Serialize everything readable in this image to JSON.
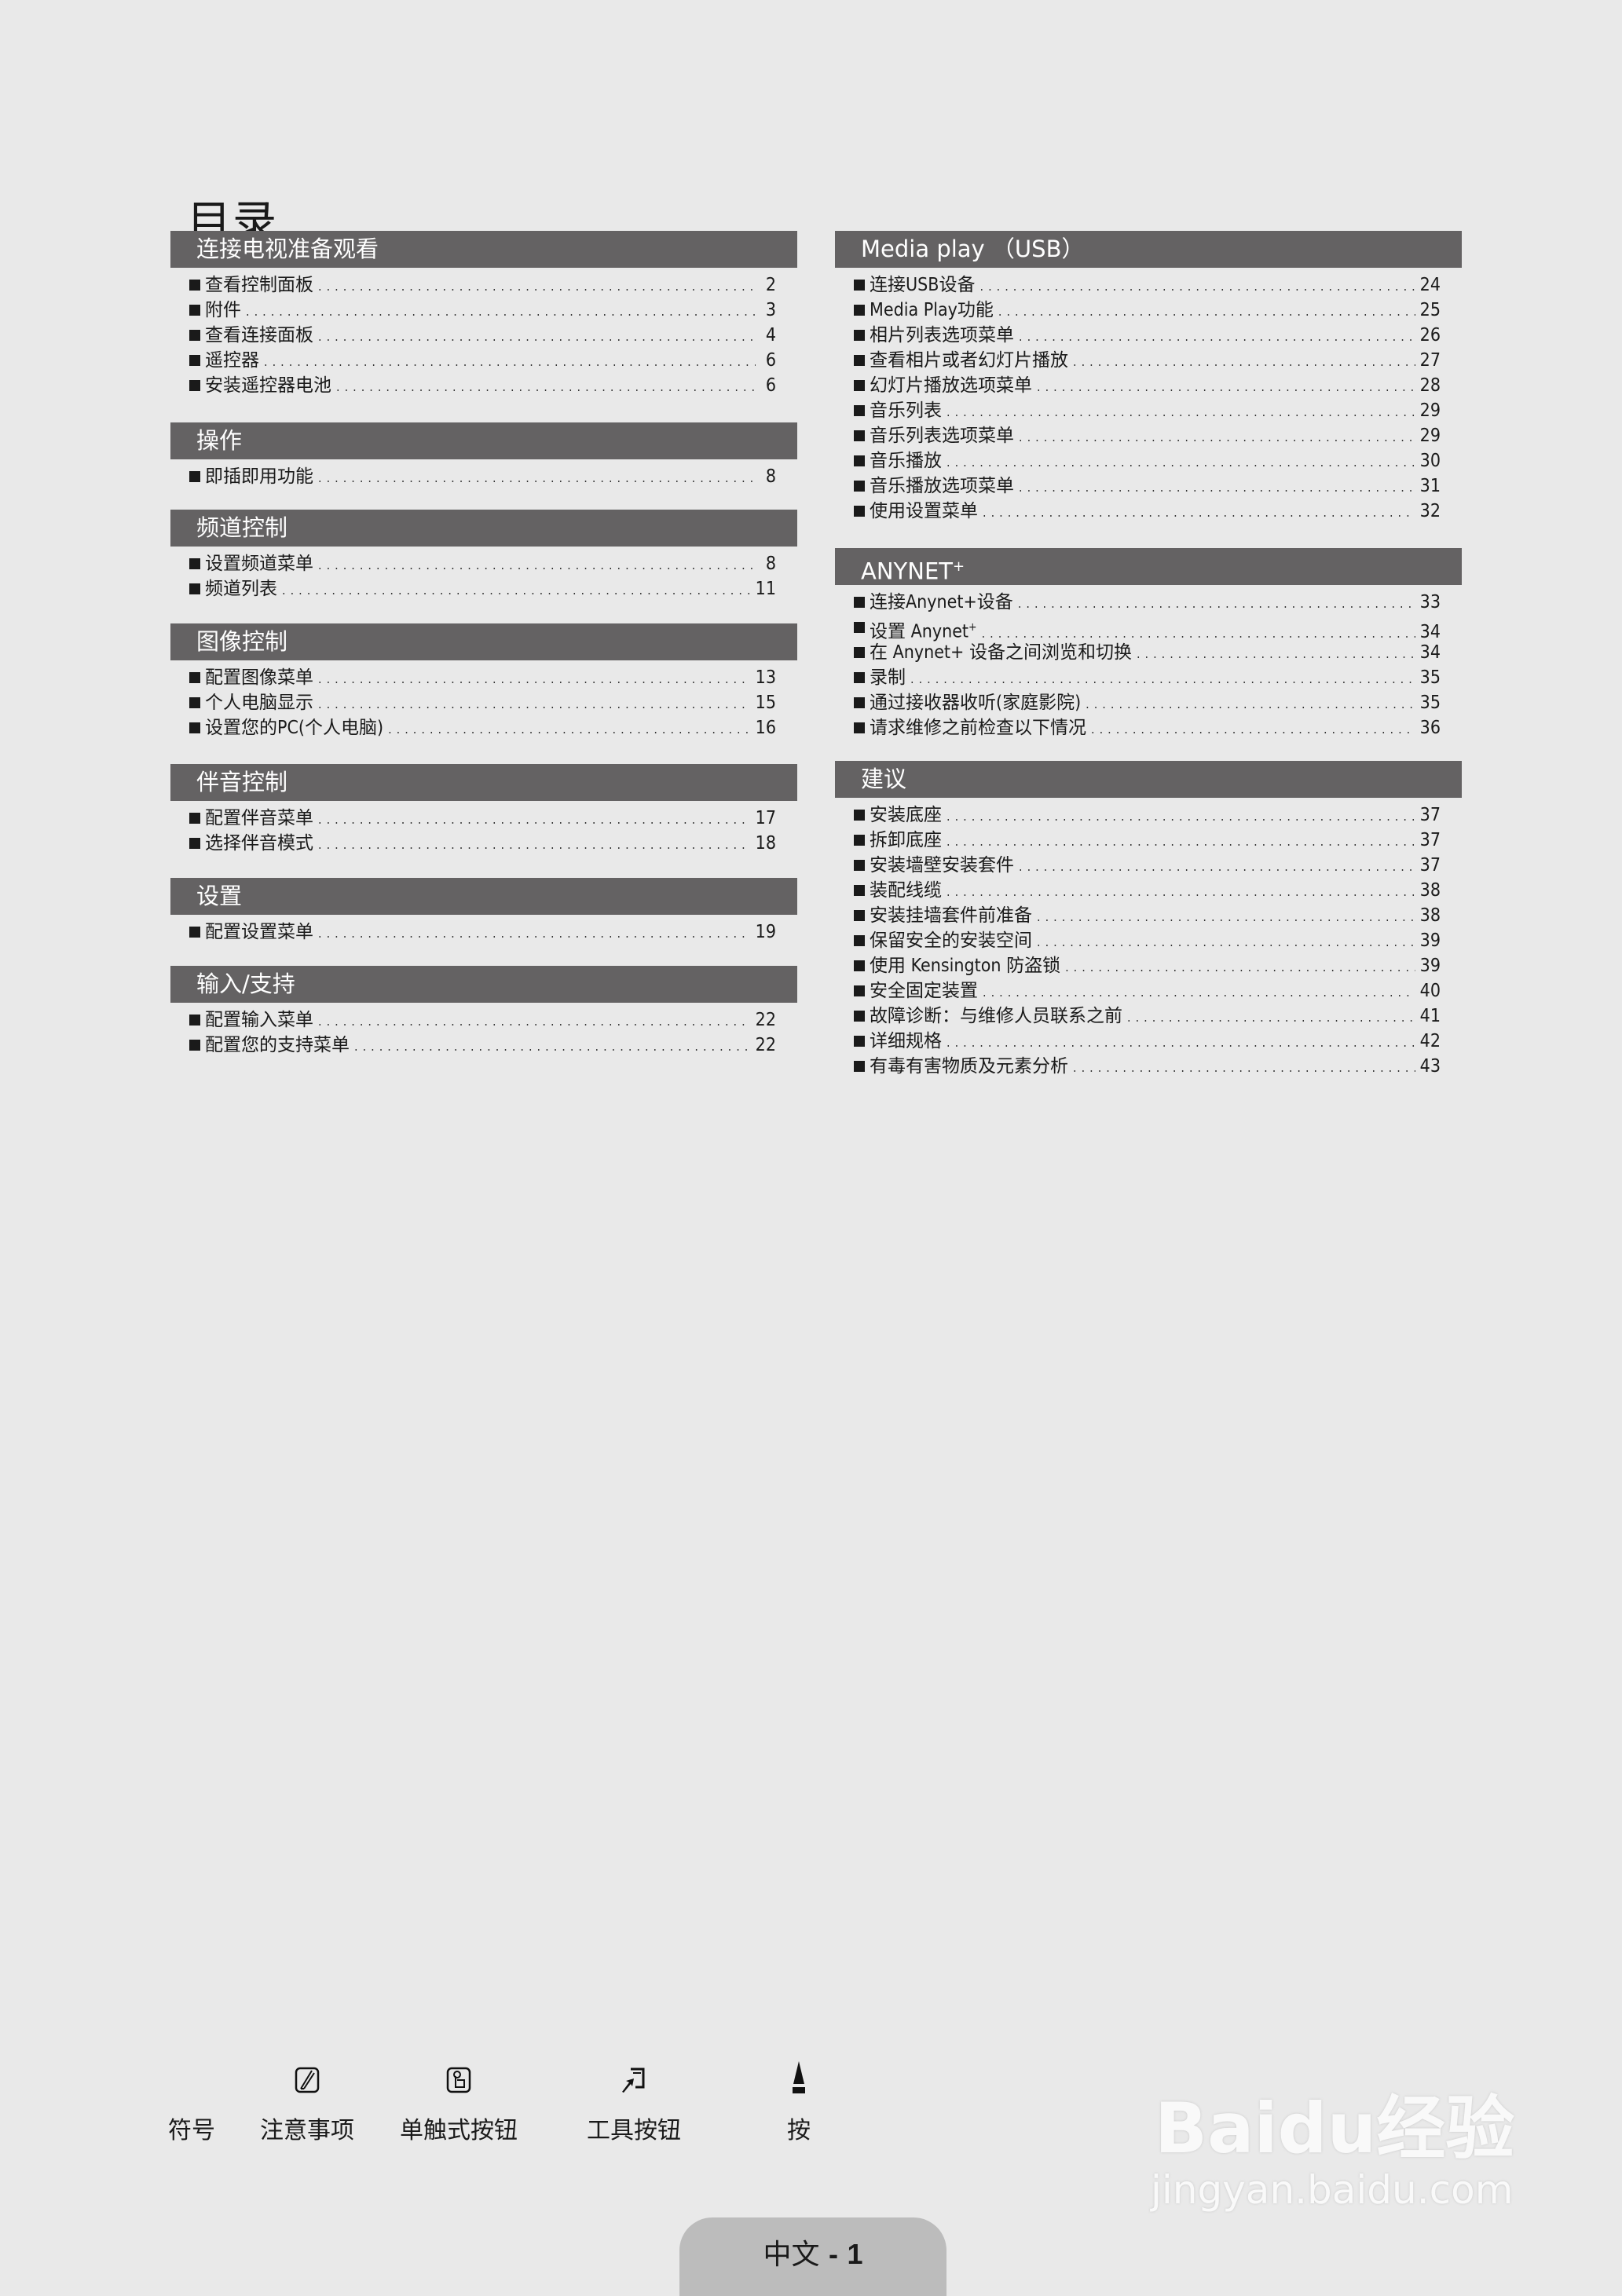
{
  "page_title": "目录",
  "left_sections": [
    {
      "title": "连接电视准备观看",
      "items": [
        {
          "label": "查看控制面板",
          "page": "2"
        },
        {
          "label": "附件",
          "page": "3"
        },
        {
          "label": "查看连接面板",
          "page": "4"
        },
        {
          "label": "遥控器",
          "page": "6"
        },
        {
          "label": "安装遥控器电池",
          "page": "6"
        }
      ]
    },
    {
      "title": "操作",
      "items": [
        {
          "label": "即插即用功能",
          "page": "8"
        }
      ]
    },
    {
      "title": "频道控制",
      "items": [
        {
          "label": "设置频道菜单",
          "page": "8"
        },
        {
          "label": "频道列表",
          "page": "11"
        }
      ]
    },
    {
      "title": "图像控制",
      "items": [
        {
          "label": "配置图像菜单",
          "page": "13"
        },
        {
          "label": "个人电脑显示",
          "page": "15"
        },
        {
          "label": "设置您的PC(个人电脑)",
          "page": "16"
        }
      ]
    },
    {
      "title": "伴音控制",
      "items": [
        {
          "label": "配置伴音菜单",
          "page": "17"
        },
        {
          "label": "选择伴音模式",
          "page": "18"
        }
      ]
    },
    {
      "title": "设置",
      "items": [
        {
          "label": "配置设置菜单",
          "page": "19"
        }
      ]
    },
    {
      "title": "输入/支持",
      "items": [
        {
          "label": "配置输入菜单",
          "page": "22"
        },
        {
          "label": "配置您的支持菜单",
          "page": "22"
        }
      ]
    }
  ],
  "right_sections": [
    {
      "title": "Media play （USB）",
      "items": [
        {
          "label": "连接USB设备",
          "page": "24"
        },
        {
          "label": "Media Play功能",
          "page": "25"
        },
        {
          "label": "相片列表选项菜单",
          "page": "26"
        },
        {
          "label": "查看相片或者幻灯片播放",
          "page": "27"
        },
        {
          "label": "幻灯片播放选项菜单",
          "page": "28"
        },
        {
          "label": "音乐列表",
          "page": "29"
        },
        {
          "label": "音乐列表选项菜单",
          "page": "29"
        },
        {
          "label": "音乐播放",
          "page": "30"
        },
        {
          "label": "音乐播放选项菜单",
          "page": "31"
        },
        {
          "label": "使用设置菜单",
          "page": "32"
        }
      ]
    },
    {
      "title": "ANYNET",
      "title_sup": "+",
      "items": [
        {
          "label": "连接Anynet+设备",
          "page": "33"
        },
        {
          "label": "设置 Anynet",
          "label_sup": "+",
          "page": "34"
        },
        {
          "label": "在 Anynet+ 设备之间浏览和切换",
          "page": "34"
        },
        {
          "label": "录制",
          "page": "35"
        },
        {
          "label": "通过接收器收听(家庭影院)",
          "page": "35"
        },
        {
          "label": "请求维修之前检查以下情况",
          "page": "36"
        }
      ]
    },
    {
      "title": "建议",
      "items": [
        {
          "label": "安装底座",
          "page": "37"
        },
        {
          "label": "拆卸底座",
          "page": "37"
        },
        {
          "label": "安装墙壁安装套件",
          "page": "37"
        },
        {
          "label": "装配线缆",
          "page": "38"
        },
        {
          "label": "安装挂墙套件前准备",
          "page": "38"
        },
        {
          "label": "保留安全的安装空间",
          "page": "39"
        },
        {
          "label": "使用 Kensington 防盗锁",
          "page": "39"
        },
        {
          "label": "安全固定装置",
          "page": "40"
        },
        {
          "label": "故障诊断：与维修人员联系之前",
          "page": "41"
        },
        {
          "label": "详细规格",
          "page": "42"
        },
        {
          "label": "有毒有害物质及元素分析",
          "page": "43"
        }
      ]
    }
  ],
  "symbols": {
    "heading": "符号",
    "items": [
      {
        "label": "注意事项",
        "icon": "note-icon"
      },
      {
        "label": "单触式按钮",
        "icon": "one-touch-button-icon"
      },
      {
        "label": "工具按钮",
        "icon": "tools-button-icon"
      },
      {
        "label": "按",
        "icon": "press-arrow-icon"
      }
    ]
  },
  "page_tab": {
    "language": "中文",
    "separator": "-",
    "number": "1"
  },
  "watermark": {
    "logo": "Baidu经验",
    "url": "jingyan.baidu.com"
  },
  "colors": {
    "background": "#e9e9e9",
    "section_bar": "#646263",
    "page_tab": "#bcbcbc"
  }
}
